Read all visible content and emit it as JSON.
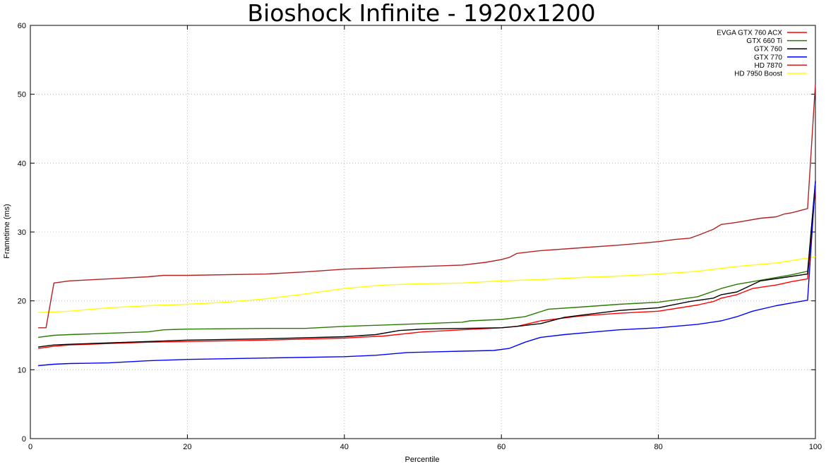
{
  "chart_data": {
    "type": "line",
    "title": "Bioshock Infinite - 1920x1200",
    "xlabel": "Percentile",
    "ylabel": "Frametime (ms)",
    "xlim": [
      0,
      100
    ],
    "ylim": [
      0,
      60
    ],
    "xticks": [
      0,
      20,
      40,
      60,
      80,
      100
    ],
    "yticks": [
      0,
      10,
      20,
      30,
      40,
      50,
      60
    ],
    "xtick_labels": [
      "0",
      "20",
      "40",
      "60",
      "80",
      "100"
    ],
    "ytick_labels": [
      "0",
      "10",
      "20",
      "30",
      "40",
      "50",
      "60"
    ],
    "grid": true,
    "legend_position": "top-right",
    "series": [
      {
        "name": "EVGA GTX 760 ACX",
        "color": "#ff0000",
        "x": [
          1,
          3,
          5,
          10,
          15,
          20,
          30,
          40,
          45,
          50,
          55,
          60,
          62,
          65,
          70,
          75,
          80,
          85,
          87,
          88,
          90,
          92,
          95,
          97,
          99,
          100
        ],
        "y": [
          13.1,
          13.4,
          13.6,
          13.8,
          14.0,
          14.1,
          14.3,
          14.6,
          14.9,
          15.5,
          15.8,
          16.1,
          16.3,
          17.1,
          17.8,
          18.2,
          18.5,
          19.4,
          19.9,
          20.4,
          20.9,
          21.8,
          22.3,
          22.8,
          23.2,
          36.5
        ]
      },
      {
        "name": "GTX 660 Ti",
        "color": "#2a7a00",
        "x": [
          1,
          3,
          5,
          10,
          15,
          17,
          20,
          30,
          35,
          40,
          45,
          50,
          55,
          56,
          60,
          63,
          66,
          70,
          75,
          80,
          85,
          88,
          90,
          93,
          97,
          99,
          100
        ],
        "y": [
          14.7,
          15.0,
          15.1,
          15.3,
          15.5,
          15.8,
          15.9,
          16.0,
          16.0,
          16.3,
          16.5,
          16.7,
          16.9,
          17.1,
          17.3,
          17.7,
          18.8,
          19.1,
          19.5,
          19.8,
          20.6,
          21.8,
          22.4,
          23.0,
          23.8,
          24.3,
          37.2
        ]
      },
      {
        "name": "GTX 760",
        "color": "#000000",
        "x": [
          1,
          3,
          5,
          10,
          15,
          20,
          30,
          40,
          44,
          47,
          50,
          55,
          60,
          62,
          65,
          68,
          70,
          75,
          80,
          84,
          87,
          88,
          90,
          93,
          96,
          99,
          100
        ],
        "y": [
          13.3,
          13.6,
          13.7,
          13.9,
          14.1,
          14.3,
          14.5,
          14.8,
          15.1,
          15.7,
          15.9,
          16.0,
          16.1,
          16.3,
          16.7,
          17.6,
          17.9,
          18.6,
          19.0,
          19.9,
          20.4,
          20.9,
          21.3,
          22.9,
          23.4,
          23.9,
          37.4
        ]
      },
      {
        "name": "GTX 770",
        "color": "#0000ff",
        "x": [
          1,
          3,
          5,
          10,
          15,
          20,
          30,
          40,
          44,
          48,
          55,
          59,
          61,
          63,
          65,
          68,
          72,
          75,
          80,
          85,
          88,
          90,
          92,
          95,
          97,
          99,
          100
        ],
        "y": [
          10.6,
          10.8,
          10.9,
          11.0,
          11.3,
          11.5,
          11.7,
          11.9,
          12.1,
          12.5,
          12.7,
          12.8,
          13.1,
          14.0,
          14.7,
          15.1,
          15.5,
          15.8,
          16.1,
          16.6,
          17.1,
          17.7,
          18.5,
          19.3,
          19.7,
          20.1,
          37.3
        ]
      },
      {
        "name": "HD 7870",
        "color": "#b22222",
        "x": [
          1,
          2,
          3,
          5,
          10,
          15,
          17,
          20,
          30,
          35,
          40,
          45,
          50,
          55,
          58,
          60,
          61,
          62,
          65,
          70,
          75,
          80,
          82,
          84,
          85,
          87,
          88,
          90,
          93,
          95,
          96,
          97,
          99,
          100
        ],
        "y": [
          16.1,
          16.1,
          22.6,
          22.9,
          23.2,
          23.5,
          23.7,
          23.7,
          23.9,
          24.2,
          24.6,
          24.8,
          25.0,
          25.2,
          25.6,
          26.0,
          26.3,
          26.9,
          27.3,
          27.7,
          28.1,
          28.6,
          28.9,
          29.1,
          29.5,
          30.4,
          31.1,
          31.4,
          32.0,
          32.2,
          32.6,
          32.8,
          33.4,
          51.5
        ]
      },
      {
        "name": "HD 7950 Boost",
        "color": "#ffff00",
        "x": [
          1,
          5,
          10,
          15,
          20,
          25,
          30,
          35,
          40,
          45,
          50,
          55,
          60,
          65,
          70,
          75,
          80,
          85,
          90,
          95,
          100
        ],
        "y": [
          18.3,
          18.5,
          19.0,
          19.3,
          19.5,
          19.8,
          20.3,
          21.0,
          21.8,
          22.3,
          22.5,
          22.6,
          22.9,
          23.1,
          23.4,
          23.6,
          23.9,
          24.3,
          25.0,
          25.5,
          26.4
        ]
      }
    ]
  }
}
